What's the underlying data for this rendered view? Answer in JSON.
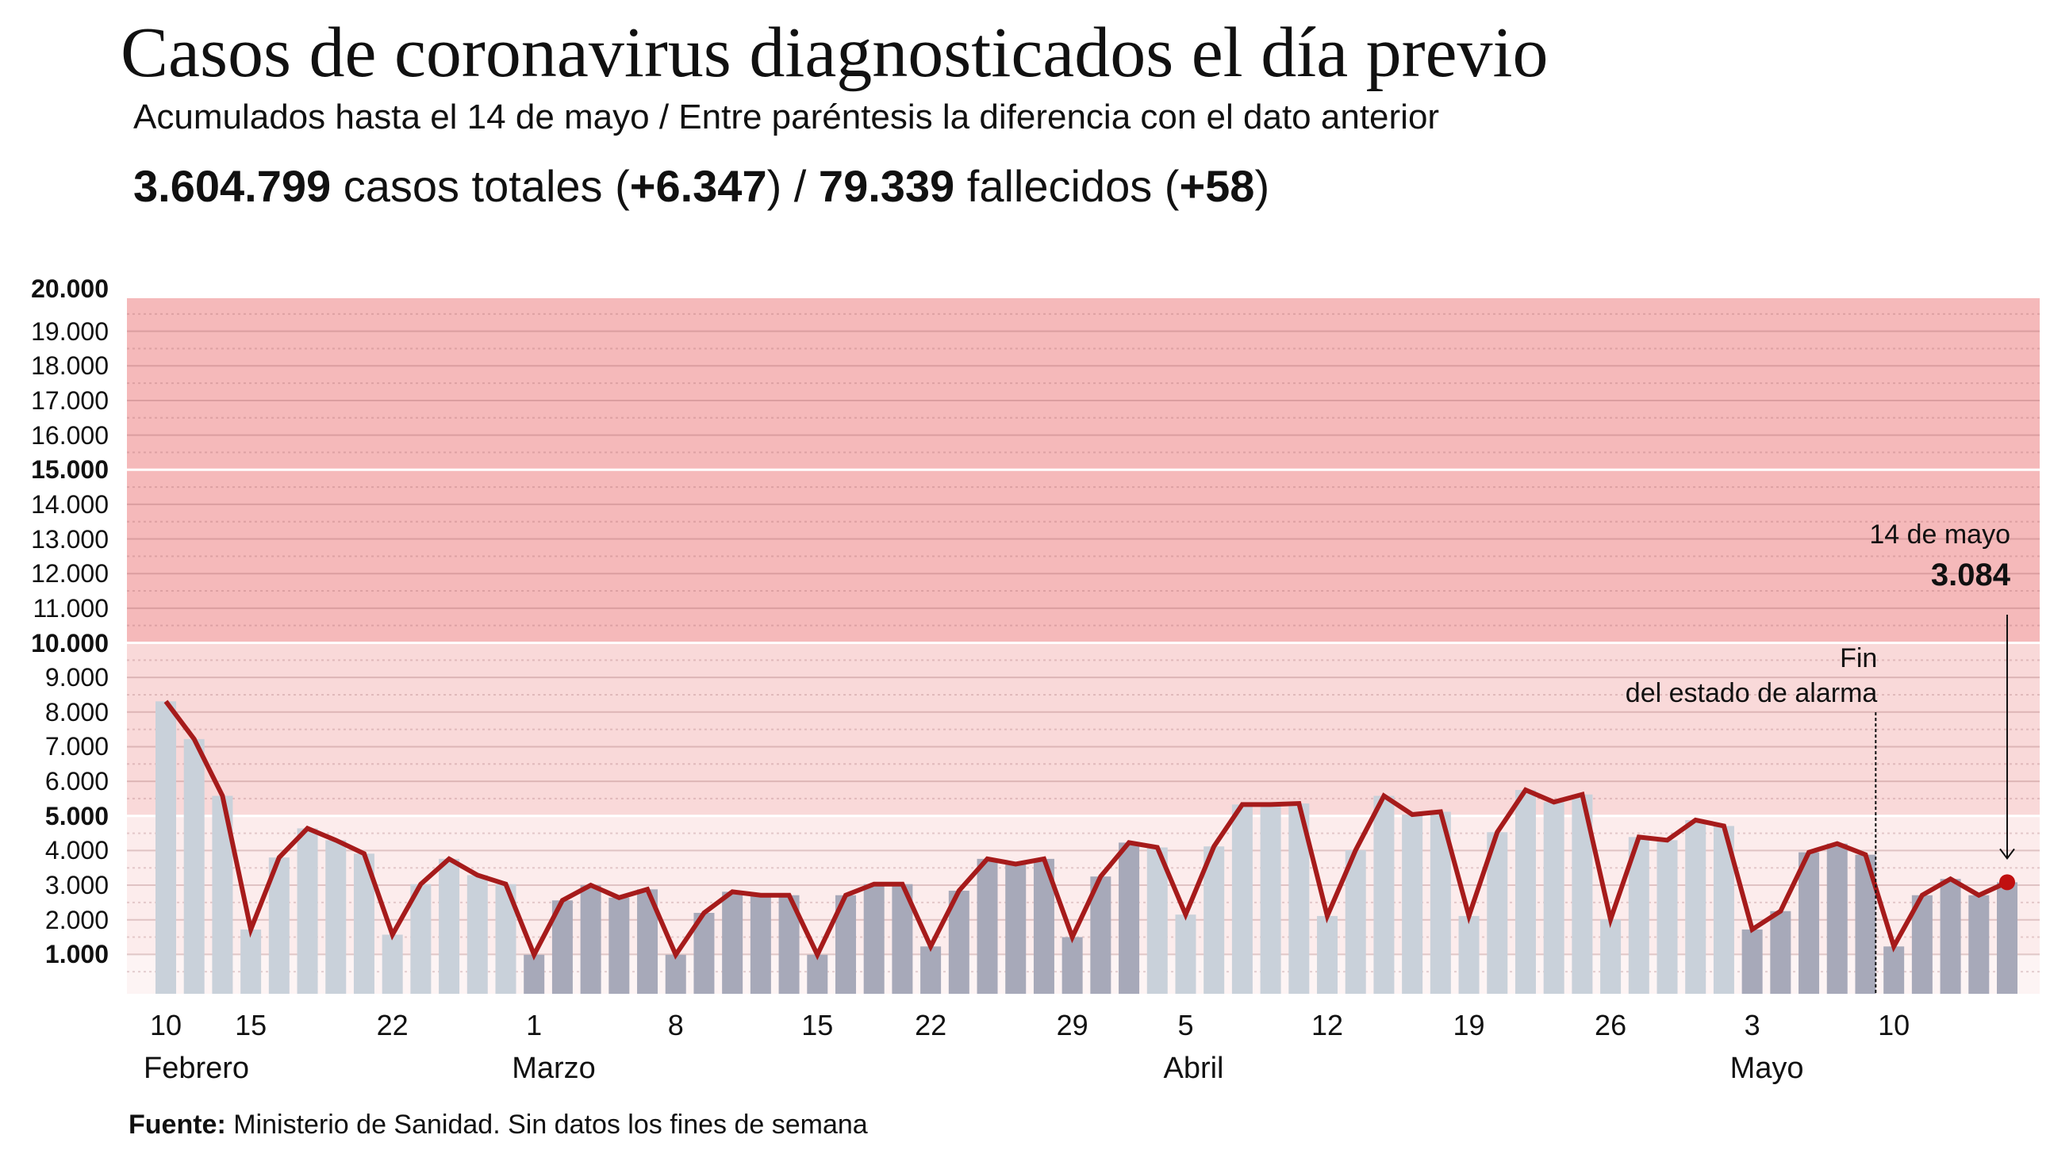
{
  "header": {
    "title": "Casos de coronavirus diagnosticados el día previo",
    "subtitle": "Acumulados hasta el 14 de mayo / Entre paréntesis la diferencia con el dato anterior",
    "totals": {
      "cases": "3.604.799",
      "cases_label": " casos totales (",
      "cases_diff": "+6.347",
      "sep": ") / ",
      "deaths": "79.339",
      "deaths_label": " fallecidos (",
      "deaths_diff": "+58",
      "close": ")"
    }
  },
  "footer": {
    "source_label": "Fuente:",
    "source_text": " Ministerio de Sanidad. Sin datos los fines de semana"
  },
  "chart_data": {
    "type": "bar+line",
    "ylim": [
      0,
      20000
    ],
    "y_ticks": [
      {
        "value": 1000,
        "label": "1.000",
        "bold": true
      },
      {
        "value": 2000,
        "label": "2.000",
        "bold": false
      },
      {
        "value": 3000,
        "label": "3.000",
        "bold": false
      },
      {
        "value": 4000,
        "label": "4.000",
        "bold": false
      },
      {
        "value": 5000,
        "label": "5.000",
        "bold": true
      },
      {
        "value": 6000,
        "label": "6.000",
        "bold": false
      },
      {
        "value": 7000,
        "label": "7.000",
        "bold": false
      },
      {
        "value": 8000,
        "label": "8.000",
        "bold": false
      },
      {
        "value": 9000,
        "label": "9.000",
        "bold": false
      },
      {
        "value": 10000,
        "label": "10.000",
        "bold": true
      },
      {
        "value": 11000,
        "label": "11.000",
        "bold": false
      },
      {
        "value": 12000,
        "label": "12.000",
        "bold": false
      },
      {
        "value": 13000,
        "label": "13.000",
        "bold": false
      },
      {
        "value": 14000,
        "label": "14.000",
        "bold": false
      },
      {
        "value": 15000,
        "label": "15.000",
        "bold": true
      },
      {
        "value": 16000,
        "label": "16.000",
        "bold": false
      },
      {
        "value": 17000,
        "label": "17.000",
        "bold": false
      },
      {
        "value": 18000,
        "label": "18.000",
        "bold": false
      },
      {
        "value": 19000,
        "label": "19.000",
        "bold": false
      },
      {
        "value": 20000,
        "label": "20.000",
        "bold": true
      }
    ],
    "bands": [
      {
        "from": 0,
        "to": 1000,
        "color": "#fdf4f4"
      },
      {
        "from": 1000,
        "to": 5000,
        "color": "#fcecec"
      },
      {
        "from": 5000,
        "to": 10000,
        "color": "#f9d9d9"
      },
      {
        "from": 10000,
        "to": 20000,
        "color": "#f5b9ba"
      }
    ],
    "colors": {
      "line": "#a61b1b",
      "bar_light": "#c9d1da",
      "bar_dark": "#a7a9b9"
    },
    "categories": [
      "10 feb",
      "11 feb",
      "12 feb",
      "15 feb",
      "16 feb",
      "17 feb",
      "18 feb",
      "19 feb",
      "22 feb",
      "23 feb",
      "24 feb",
      "25 feb",
      "26 feb",
      "1 mar",
      "2 mar",
      "3 mar",
      "4 mar",
      "5 mar",
      "8 mar",
      "9 mar",
      "10 mar",
      "11 mar",
      "12 mar",
      "15 mar",
      "16 mar",
      "17 mar",
      "18 mar",
      "22 mar",
      "23 mar",
      "24 mar",
      "25 mar",
      "26 mar",
      "29 mar",
      "30 mar",
      "31 mar",
      "1 abr",
      "5 abr",
      "6 abr",
      "7 abr",
      "8 abr",
      "9 abr",
      "12 abr",
      "13 abr",
      "14 abr",
      "15 abr",
      "16 abr",
      "19 abr",
      "20 abr",
      "21 abr",
      "22 abr",
      "23 abr",
      "26 abr",
      "27 abr",
      "28 abr",
      "29 abr",
      "30 abr",
      "3 may",
      "4 may",
      "5 may",
      "6 may",
      "7 may",
      "10 may",
      "11 may",
      "12 may",
      "13 may",
      "14 may"
    ],
    "values": [
      8310,
      7220,
      5580,
      1720,
      3800,
      4640,
      4300,
      3910,
      1570,
      3030,
      3760,
      3290,
      3030,
      990,
      2560,
      3000,
      2640,
      2880,
      990,
      2200,
      2810,
      2710,
      2710,
      990,
      2710,
      3030,
      3030,
      1230,
      2840,
      3760,
      3610,
      3760,
      1500,
      3250,
      4230,
      4090,
      2150,
      4120,
      5330,
      5330,
      5360,
      2110,
      4010,
      5580,
      5040,
      5120,
      2110,
      4530,
      5750,
      5400,
      5620,
      2010,
      4390,
      4300,
      4880,
      4710,
      1720,
      2250,
      3950,
      4200,
      3880,
      1230,
      2710,
      3180,
      2710,
      3084
    ],
    "months": [
      {
        "label": "Febrero",
        "start": "10 feb",
        "shade": "light"
      },
      {
        "label": "Marzo",
        "start": "1 mar",
        "shade": "dark"
      },
      {
        "label": "Abril",
        "start": "1 abr",
        "label_at": "5 abr",
        "shade": "light"
      },
      {
        "label": "Mayo",
        "start": "3 may",
        "shade": "dark"
      }
    ],
    "x_ticks": [
      {
        "at": "10 feb",
        "label": "10"
      },
      {
        "at": "15 feb",
        "label": "15"
      },
      {
        "at": "22 feb",
        "label": "22"
      },
      {
        "at": "1 mar",
        "label": "1"
      },
      {
        "at": "8 mar",
        "label": "8"
      },
      {
        "at": "15 mar",
        "label": "15"
      },
      {
        "at": "22 mar",
        "label": "22"
      },
      {
        "at": "29 mar",
        "label": "29"
      },
      {
        "at": "5 abr",
        "label": "5"
      },
      {
        "at": "12 abr",
        "label": "12"
      },
      {
        "at": "19 abr",
        "label": "19"
      },
      {
        "at": "26 abr",
        "label": "26"
      },
      {
        "at": "3 may",
        "label": "3"
      },
      {
        "at": "10 may",
        "label": "10"
      }
    ],
    "annotations": {
      "last_point": {
        "at": "14 may",
        "date_label": "14 de mayo",
        "value_label": "3.084"
      },
      "end_alarm": {
        "between": [
          "7 may",
          "10 may"
        ],
        "line1": "Fin",
        "line2": "del estado de alarma"
      }
    }
  }
}
